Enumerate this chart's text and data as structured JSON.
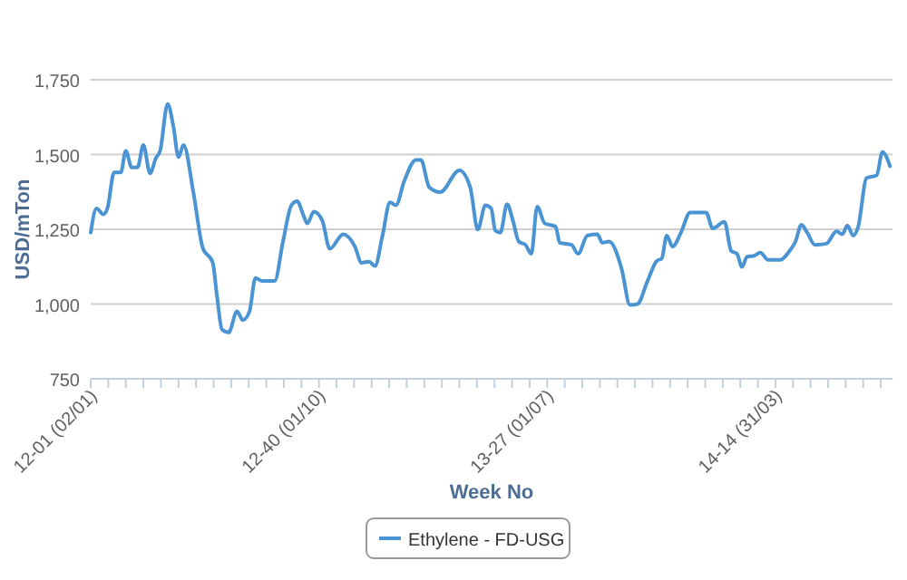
{
  "chart_data": {
    "type": "line",
    "xlabel": "Week No",
    "ylabel": "USD/mTon",
    "xlim": [
      "2012-01-02",
      "2014-08-18"
    ],
    "xticks": [
      {
        "value": "2012-01-02",
        "label": "12-01 (02/01)"
      },
      {
        "value": "2012-01-23",
        "label": null
      },
      {
        "value": "2012-02-13",
        "label": null
      },
      {
        "value": "2012-03-05",
        "label": null
      },
      {
        "value": "2012-03-26",
        "label": null
      },
      {
        "value": "2012-04-16",
        "label": null
      },
      {
        "value": "2012-05-07",
        "label": null
      },
      {
        "value": "2012-05-28",
        "label": null
      },
      {
        "value": "2012-06-18",
        "label": null
      },
      {
        "value": "2012-07-09",
        "label": null
      },
      {
        "value": "2012-07-30",
        "label": null
      },
      {
        "value": "2012-08-20",
        "label": null
      },
      {
        "value": "2012-09-10",
        "label": null
      },
      {
        "value": "2012-10-01",
        "label": "12-40 (01/10)"
      },
      {
        "value": "2012-10-22",
        "label": null
      },
      {
        "value": "2012-11-12",
        "label": null
      },
      {
        "value": "2012-12-03",
        "label": null
      },
      {
        "value": "2012-12-24",
        "label": null
      },
      {
        "value": "2013-01-14",
        "label": null
      },
      {
        "value": "2013-02-04",
        "label": null
      },
      {
        "value": "2013-02-25",
        "label": null
      },
      {
        "value": "2013-03-18",
        "label": null
      },
      {
        "value": "2013-04-08",
        "label": null
      },
      {
        "value": "2013-04-29",
        "label": null
      },
      {
        "value": "2013-05-20",
        "label": null
      },
      {
        "value": "2013-06-10",
        "label": null
      },
      {
        "value": "2013-07-01",
        "label": "13-27 (01/07)"
      },
      {
        "value": "2013-07-22",
        "label": null
      },
      {
        "value": "2013-08-12",
        "label": null
      },
      {
        "value": "2013-09-02",
        "label": null
      },
      {
        "value": "2013-09-23",
        "label": null
      },
      {
        "value": "2013-10-14",
        "label": null
      },
      {
        "value": "2013-11-04",
        "label": null
      },
      {
        "value": "2013-11-25",
        "label": null
      },
      {
        "value": "2013-12-16",
        "label": null
      },
      {
        "value": "2014-01-06",
        "label": null
      },
      {
        "value": "2014-01-27",
        "label": null
      },
      {
        "value": "2014-02-17",
        "label": null
      },
      {
        "value": "2014-03-10",
        "label": null
      },
      {
        "value": "2014-03-31",
        "label": "14-14 (31/03)"
      },
      {
        "value": "2014-04-21",
        "label": null
      },
      {
        "value": "2014-05-12",
        "label": null
      },
      {
        "value": "2014-06-02",
        "label": null
      },
      {
        "value": "2014-06-23",
        "label": null
      },
      {
        "value": "2014-07-14",
        "label": null
      },
      {
        "value": "2014-08-04",
        "label": null
      }
    ],
    "ylim": [
      750,
      1750
    ],
    "yticks": [
      {
        "value": 750,
        "label": "750"
      },
      {
        "value": 1000,
        "label": "1,000"
      },
      {
        "value": 1250,
        "label": "1,250"
      },
      {
        "value": 1500,
        "label": "1,500"
      },
      {
        "value": 1750,
        "label": "1,750"
      }
    ],
    "grid": "y",
    "legend": "bottom",
    "marker": "none",
    "line_style": "solid",
    "x": [
      "2012-01-02",
      "2012-01-09",
      "2012-01-17",
      "2012-01-22",
      "2012-01-30",
      "2012-02-07",
      "2012-02-13",
      "2012-02-20",
      "2012-02-27",
      "2012-03-05",
      "2012-03-13",
      "2012-03-20",
      "2012-03-25",
      "2012-04-03",
      "2012-04-10",
      "2012-04-16",
      "2012-04-22",
      "2012-05-04",
      "2012-05-15",
      "2012-05-27",
      "2012-06-01",
      "2012-06-07",
      "2012-06-15",
      "2012-06-25",
      "2012-07-02",
      "2012-07-10",
      "2012-07-17",
      "2012-07-25",
      "2012-08-09",
      "2012-08-19",
      "2012-08-29",
      "2012-09-05",
      "2012-09-12",
      "2012-09-17",
      "2012-09-25",
      "2012-10-05",
      "2012-10-14",
      "2012-10-30",
      "2012-11-13",
      "2012-11-21",
      "2012-11-30",
      "2012-12-07",
      "2012-12-16",
      "2012-12-25",
      "2013-01-01",
      "2013-01-11",
      "2013-01-25",
      "2013-01-31",
      "2013-02-10",
      "2013-02-23",
      "2013-03-18",
      "2013-03-31",
      "2013-04-09",
      "2013-04-18",
      "2013-04-25",
      "2013-04-30",
      "2013-05-06",
      "2013-05-14",
      "2013-05-21",
      "2013-05-28",
      "2013-06-05",
      "2013-06-12",
      "2013-06-19",
      "2013-06-28",
      "2013-07-11",
      "2013-07-16",
      "2013-07-30",
      "2013-08-07",
      "2013-08-18",
      "2013-08-30",
      "2013-09-05",
      "2013-09-13",
      "2013-09-28",
      "2013-10-08",
      "2013-10-17",
      "2013-10-29",
      "2013-11-09",
      "2013-11-15",
      "2013-11-21",
      "2013-11-28",
      "2013-12-08",
      "2013-12-19",
      "2014-01-07",
      "2014-01-15",
      "2014-01-29",
      "2014-02-06",
      "2014-02-13",
      "2014-02-19",
      "2014-02-25",
      "2014-03-06",
      "2014-03-13",
      "2014-03-22",
      "2014-04-06",
      "2014-04-17",
      "2014-04-24",
      "2014-05-01",
      "2014-05-08",
      "2014-05-17",
      "2014-05-31",
      "2014-06-12",
      "2014-06-19",
      "2014-06-25",
      "2014-07-02",
      "2014-07-08",
      "2014-07-18",
      "2014-07-30",
      "2014-08-06",
      "2014-08-15"
    ],
    "series": [
      {
        "name": "Ethylene - FD-USG",
        "color": "#4a94d4",
        "values": [
          1239,
          1320,
          1300,
          1320,
          1440,
          1440,
          1512,
          1457,
          1457,
          1532,
          1437,
          1488,
          1512,
          1669,
          1592,
          1491,
          1532,
          1370,
          1188,
          1138,
          1027,
          915,
          905,
          976,
          946,
          976,
          1087,
          1077,
          1077,
          1209,
          1330,
          1344,
          1300,
          1270,
          1309,
          1279,
          1185,
          1233,
          1192,
          1138,
          1142,
          1127,
          1229,
          1340,
          1330,
          1411,
          1482,
          1482,
          1390,
          1374,
          1447,
          1390,
          1249,
          1330,
          1320,
          1245,
          1239,
          1334,
          1279,
          1209,
          1198,
          1168,
          1326,
          1270,
          1259,
          1205,
          1198,
          1168,
          1229,
          1233,
          1205,
          1209,
          1118,
          997,
          1000,
          1077,
          1144,
          1152,
          1229,
          1192,
          1239,
          1306,
          1306,
          1253,
          1275,
          1178,
          1168,
          1124,
          1158,
          1162,
          1172,
          1148,
          1148,
          1178,
          1209,
          1265,
          1239,
          1198,
          1202,
          1243,
          1233,
          1263,
          1229,
          1259,
          1421,
          1430,
          1508,
          1461
        ]
      }
    ]
  }
}
